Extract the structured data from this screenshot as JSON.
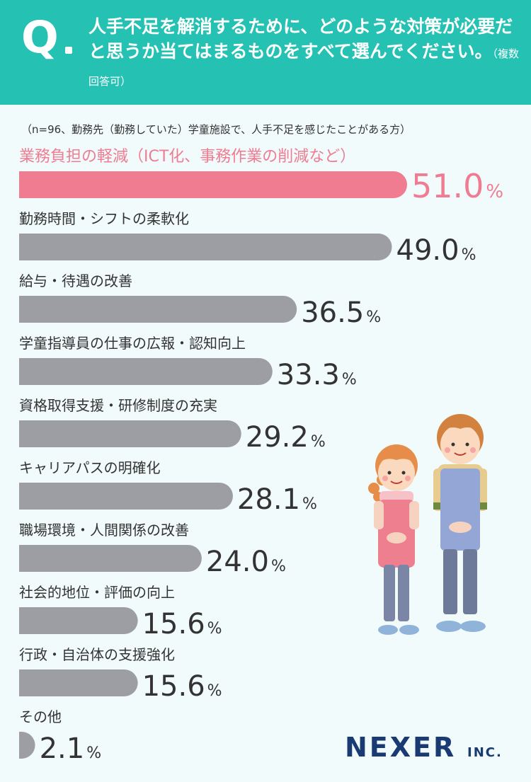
{
  "header": {
    "q_mark": "Q",
    "question": "人手不足を解消するために、どのような対策が必要だと思うか当てはまるものをすべて選んでください。",
    "note": "（複数回答可）"
  },
  "sample_note": "（n=96、勤務先（勤務していた）学童施設で、人手不足を感じたことがある方）",
  "colors": {
    "highlight": "#f07c92",
    "bar": "#9d9ea3",
    "header": "#25c1b3",
    "brand": "#1a3a73"
  },
  "chart_data": {
    "type": "bar",
    "orientation": "horizontal",
    "unit": "%",
    "xlim": [
      0,
      51.0
    ],
    "categories": [
      "業務負担の軽減（ICT化、事務作業の削減など）",
      "勤務時間・シフトの柔軟化",
      "給与・待遇の改善",
      "学童指導員の仕事の広報・認知向上",
      "資格取得支援・研修制度の充実",
      "キャリアパスの明確化",
      "職場環境・人間関係の改善",
      "社会的地位・評価の向上",
      "行政・自治体の支援強化",
      "その他"
    ],
    "values": [
      51.0,
      49.0,
      36.5,
      33.3,
      29.2,
      28.1,
      24.0,
      15.6,
      15.6,
      2.1
    ],
    "value_labels": [
      "51.0",
      "49.0",
      "36.5",
      "33.3",
      "29.2",
      "28.1",
      "24.0",
      "15.6",
      "15.6",
      "2.1"
    ],
    "highlight_index": 0
  },
  "brand": {
    "name": "NEXER",
    "suffix": "INC."
  },
  "illustration": "two-children-in-aprons"
}
